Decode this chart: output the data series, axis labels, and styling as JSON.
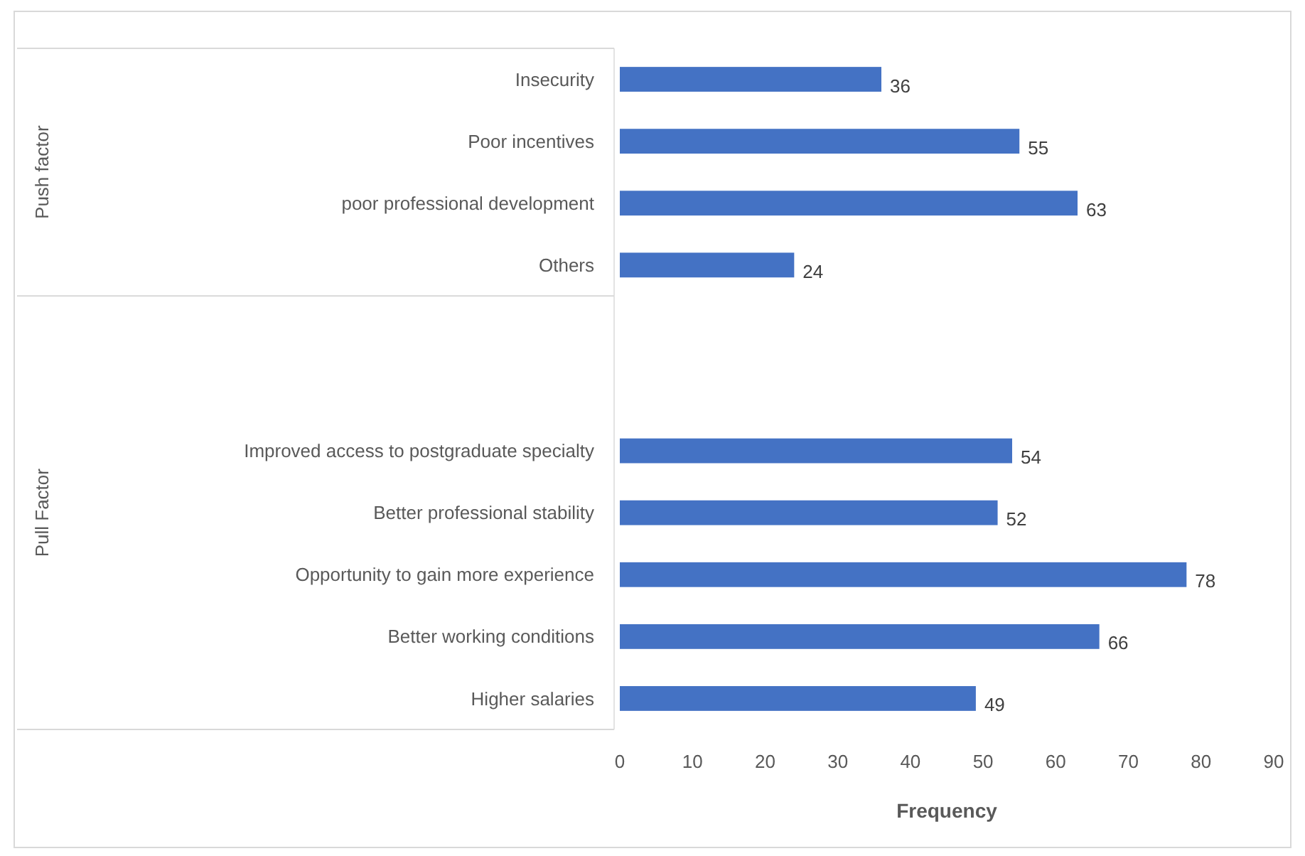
{
  "chart_data": {
    "type": "bar",
    "orientation": "horizontal",
    "xlabel": "Frequency",
    "categories": [
      "Insecurity",
      "Poor incentives",
      "poor professional development",
      "Others",
      null,
      null,
      "Improved access to postgraduate specialty",
      "Better professional stability",
      "Opportunity to gain more experience",
      "Better working conditions",
      "Higher salaries"
    ],
    "values": [
      36,
      55,
      63,
      24,
      null,
      null,
      54,
      52,
      78,
      66,
      49
    ],
    "color": "#4472c4",
    "data_labels": true,
    "grid": false,
    "xlim": [
      0,
      90
    ],
    "xticks": [
      0,
      10,
      20,
      30,
      40,
      50,
      60,
      70,
      80,
      90
    ],
    "annotations": [
      "Push factor",
      "Pull Factor"
    ]
  }
}
